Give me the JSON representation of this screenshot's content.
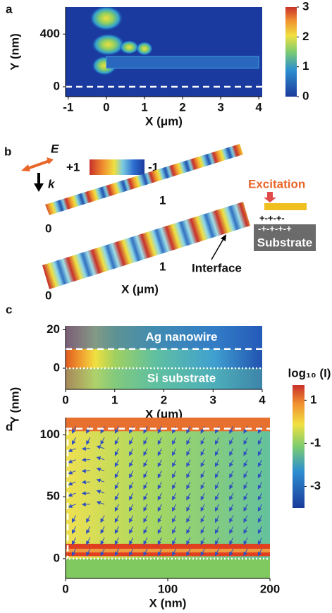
{
  "chart_data": [
    {
      "type": "heatmap",
      "label": "a",
      "xlabel": "X (μm)",
      "ylabel": "Y (nm)",
      "xlim": [
        -1.07,
        4.09
      ],
      "ylim": [
        -75,
        605
      ],
      "xticks": [
        -1,
        0,
        1,
        2,
        3,
        4
      ],
      "yticks": [
        0,
        400
      ],
      "colorbar": {
        "lim": [
          0,
          3
        ],
        "ticks": [
          0,
          1,
          2,
          3
        ]
      },
      "lines": [
        {
          "value": 0,
          "style": "dashed"
        }
      ]
    },
    {
      "type": "heatmap",
      "label": "c",
      "xlabel": "X (μm)",
      "xlim": [
        0,
        4.0
      ],
      "ylim": [
        -11,
        22
      ],
      "xticks": [
        0,
        1,
        2,
        3,
        4
      ],
      "yticks": [
        0,
        20
      ],
      "annotations": [
        "Ag nanowire",
        "Si substrate"
      ],
      "lines": [
        {
          "value": 10,
          "style": "dashed"
        },
        {
          "value": 0,
          "style": "dotted"
        }
      ]
    },
    {
      "type": "heatmap",
      "label": "d",
      "xlabel": "X (nm)",
      "xlim": [
        0,
        200
      ],
      "ylim": [
        -16,
        114
      ],
      "xticks": [
        0,
        100,
        200
      ],
      "yticks": [
        0,
        50,
        100
      ],
      "lines": [
        {
          "value": 105,
          "style": "dashed"
        },
        {
          "value": 0,
          "style": "dotted"
        }
      ]
    }
  ],
  "shared": {
    "ylabel": "Y (nm)",
    "colorbar": {
      "title": "log₁₀ (I)",
      "lim": [
        -4,
        1.7
      ],
      "ticks": [
        1,
        -1,
        -3
      ]
    }
  },
  "illustration": {
    "label": "b",
    "field": "E",
    "wavevector": "k",
    "scale_max": "+1",
    "scale_min": "-1",
    "top_wire_ticks": [
      "0",
      "1"
    ],
    "bottom_wire_ticks": [
      "0",
      "1"
    ],
    "xlabel": "X (μm)",
    "interface": "Interface",
    "excitation": "Excitation",
    "charges_top": "+-+-+-",
    "charges_bottom": "-+-+-+-+",
    "substrate": "Substrate"
  }
}
